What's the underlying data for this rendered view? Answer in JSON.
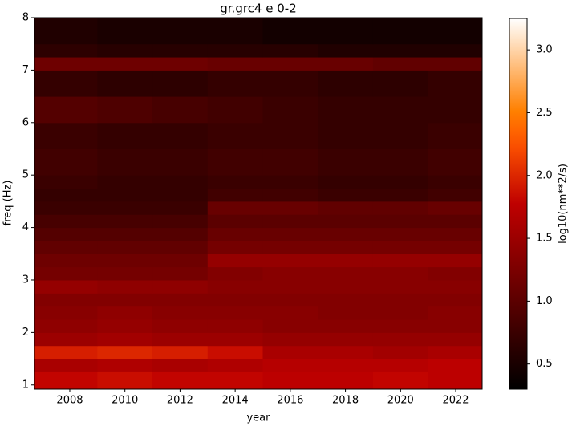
{
  "chart_data": {
    "type": "heatmap",
    "title": "gr.grc4 e 0-2",
    "x_label": "year",
    "y_label": "freq (Hz)",
    "colorbar_label": "log10(nm**2/s)",
    "colormap": "gist_heat",
    "xlim": [
      2006.72,
      2022.96
    ],
    "ylim": [
      0.92,
      8
    ],
    "xticks": [
      2008,
      2010,
      2012,
      2014,
      2016,
      2018,
      2020,
      2022
    ],
    "yticks": [
      1,
      2,
      3,
      4,
      5,
      6,
      7,
      8
    ],
    "zlim": [
      0.3,
      3.25
    ],
    "zticks": [
      0.5,
      {
        "value": 1,
        "label": "1.0"
      },
      1.5,
      {
        "value": 2,
        "label": "2.0"
      },
      2.5,
      {
        "value": 3,
        "label": "3.0"
      }
    ],
    "x_edges": [
      2006.72,
      2009,
      2011,
      2013,
      2015,
      2017,
      2019,
      2021,
      2022.96
    ],
    "y_edges": [
      0.92,
      1.25,
      1.5,
      1.75,
      2,
      2.25,
      2.5,
      2.75,
      3,
      3.25,
      3.5,
      3.75,
      4,
      4.25,
      4.5,
      4.75,
      5,
      5.5,
      6,
      6.5,
      7,
      7.25,
      7.5,
      8
    ],
    "z": [
      [
        1.8,
        1.85,
        1.8,
        1.8,
        1.75,
        1.75,
        1.8,
        1.75
      ],
      [
        1.6,
        1.65,
        1.6,
        1.65,
        1.7,
        1.7,
        1.7,
        1.75
      ],
      [
        1.95,
        2.0,
        1.95,
        1.85,
        1.6,
        1.6,
        1.55,
        1.6
      ],
      [
        1.5,
        1.55,
        1.5,
        1.5,
        1.45,
        1.45,
        1.45,
        1.45
      ],
      [
        1.4,
        1.45,
        1.4,
        1.4,
        1.35,
        1.35,
        1.35,
        1.35
      ],
      [
        1.35,
        1.4,
        1.35,
        1.35,
        1.35,
        1.3,
        1.3,
        1.35
      ],
      [
        1.3,
        1.3,
        1.3,
        1.3,
        1.3,
        1.3,
        1.3,
        1.3
      ],
      [
        1.45,
        1.4,
        1.4,
        1.35,
        1.35,
        1.35,
        1.35,
        1.35
      ],
      [
        1.2,
        1.2,
        1.2,
        1.3,
        1.35,
        1.35,
        1.35,
        1.3
      ],
      [
        1.15,
        1.15,
        1.15,
        1.45,
        1.45,
        1.45,
        1.45,
        1.45
      ],
      [
        1.05,
        1.05,
        1.05,
        1.2,
        1.2,
        1.2,
        1.2,
        1.2
      ],
      [
        0.95,
        0.95,
        0.95,
        1.1,
        1.1,
        1.1,
        1.1,
        1.1
      ],
      [
        0.85,
        0.85,
        0.85,
        1.0,
        1.0,
        1.0,
        1.0,
        1.0
      ],
      [
        0.75,
        0.75,
        0.75,
        1.1,
        1.1,
        1.05,
        1.05,
        1.1
      ],
      [
        0.7,
        0.7,
        0.7,
        0.8,
        0.8,
        0.75,
        0.75,
        0.8
      ],
      [
        0.75,
        0.7,
        0.7,
        0.75,
        0.75,
        0.7,
        0.7,
        0.75
      ],
      [
        0.8,
        0.75,
        0.75,
        0.8,
        0.8,
        0.75,
        0.75,
        0.8
      ],
      [
        0.75,
        0.7,
        0.7,
        0.75,
        0.75,
        0.7,
        0.7,
        0.75
      ],
      [
        0.95,
        0.9,
        0.85,
        0.8,
        0.75,
        0.7,
        0.7,
        0.7
      ],
      [
        0.7,
        0.65,
        0.65,
        0.7,
        0.7,
        0.65,
        0.65,
        0.7
      ],
      [
        1.15,
        1.15,
        1.15,
        1.1,
        1.1,
        1.1,
        1.05,
        1.05
      ],
      [
        0.65,
        0.6,
        0.6,
        0.6,
        0.6,
        0.55,
        0.55,
        0.55
      ],
      [
        0.55,
        0.5,
        0.5,
        0.5,
        0.45,
        0.45,
        0.45,
        0.45
      ]
    ]
  }
}
